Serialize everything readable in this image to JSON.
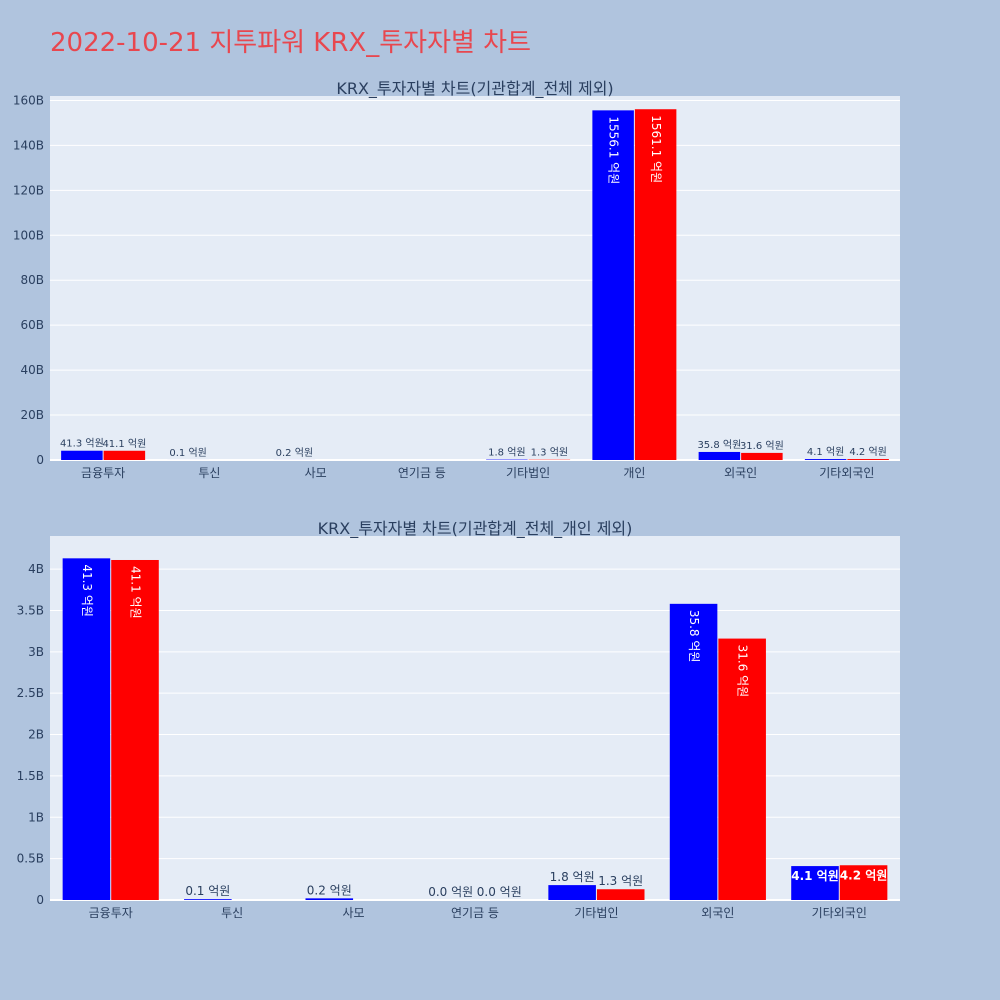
{
  "page": {
    "title": "2022-10-21 지투파워 KRX_투자자별 차트"
  },
  "colors": {
    "page_bg": "#b0c4de",
    "plot_bg": "#e5ecf6",
    "series_a": "#0000ff",
    "series_b": "#ff0000",
    "title": "#e8474f"
  },
  "unit_suffix": " 억원",
  "chart_data": [
    {
      "type": "bar",
      "title": "KRX_투자자별 차트(기관합계_전체 제외)",
      "xlabel": "",
      "ylabel": "",
      "categories": [
        "금융투자",
        "투신",
        "사모",
        "연기금 등",
        "기타법인",
        "개인",
        "외국인",
        "기타외국인"
      ],
      "series": [
        {
          "color": "#0000ff",
          "values": [
            4.13,
            0.01,
            0.02,
            0.0,
            0.18,
            155.61,
            3.58,
            0.41
          ],
          "labels": [
            "41.3",
            "0.1",
            "0.2",
            "",
            "1.8",
            "1556.1",
            "35.8",
            "4.1"
          ]
        },
        {
          "color": "#ff0000",
          "values": [
            4.11,
            0.0,
            0.0,
            0.0,
            0.13,
            156.11,
            3.16,
            0.42
          ],
          "labels": [
            "41.1",
            "",
            "",
            "",
            "1.3",
            "1561.1",
            "31.6",
            "4.2"
          ]
        }
      ],
      "ylim": [
        0,
        162
      ],
      "yticks": [
        0,
        20,
        40,
        60,
        80,
        100,
        120,
        140,
        160
      ],
      "ytick_labels": [
        "0",
        "20B",
        "40B",
        "60B",
        "80B",
        "100B",
        "120B",
        "140B",
        "160B"
      ],
      "grid": true,
      "legend": "none"
    },
    {
      "type": "bar",
      "title": "KRX_투자자별 차트(기관합계_전체_개인 제외)",
      "xlabel": "",
      "ylabel": "",
      "categories": [
        "금융투자",
        "투신",
        "사모",
        "연기금 등",
        "기타법인",
        "외국인",
        "기타외국인"
      ],
      "series": [
        {
          "color": "#0000ff",
          "values": [
            4.13,
            0.01,
            0.02,
            0.0,
            0.18,
            3.58,
            0.41
          ],
          "labels": [
            "41.3",
            "0.1",
            "0.2",
            "0.0",
            "1.8",
            "35.8",
            "4.1"
          ]
        },
        {
          "color": "#ff0000",
          "values": [
            4.11,
            0.0,
            0.0,
            0.0,
            0.13,
            3.16,
            0.42
          ],
          "labels": [
            "41.1",
            "",
            "",
            "0.0",
            "1.3",
            "31.6",
            "4.2"
          ]
        }
      ],
      "ylim": [
        0,
        4.4
      ],
      "yticks": [
        0,
        0.5,
        1,
        1.5,
        2,
        2.5,
        3,
        3.5,
        4
      ],
      "ytick_labels": [
        "0",
        "0.5B",
        "1B",
        "1.5B",
        "2B",
        "2.5B",
        "3B",
        "3.5B",
        "4B"
      ],
      "grid": true,
      "legend": "none"
    }
  ]
}
